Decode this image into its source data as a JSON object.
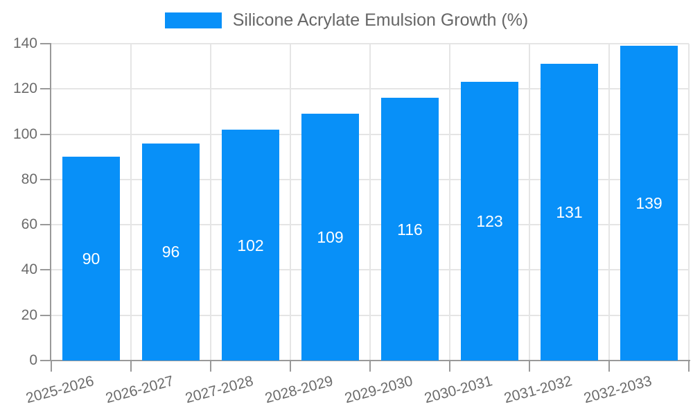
{
  "legend": {
    "label": "Silicone Acrylate Emulsion Growth (%)"
  },
  "colors": {
    "bar": "#0890F8",
    "grid": "#E5E5E5",
    "axis": "#999999",
    "tick_text": "#6b6b6b",
    "legend_text": "#666666",
    "value_text": "#ffffff",
    "background": "#ffffff"
  },
  "chart_data": {
    "type": "bar",
    "title": "",
    "categories": [
      "2025-2026",
      "2026-2027",
      "2027-2028",
      "2028-2029",
      "2029-2030",
      "2030-2031",
      "2031-2032",
      "2032-2033"
    ],
    "values": [
      90,
      96,
      102,
      109,
      116,
      123,
      131,
      139
    ],
    "series": [
      {
        "name": "Silicone Acrylate Emulsion Growth (%)",
        "values": [
          90,
          96,
          102,
          109,
          116,
          123,
          131,
          139
        ]
      }
    ],
    "xlabel": "",
    "ylabel": "",
    "ylim": [
      0,
      140
    ],
    "yticks": [
      0,
      20,
      40,
      60,
      80,
      100,
      120,
      140
    ],
    "grid": true,
    "legend_position": "top-center",
    "value_labels": "inside-center",
    "x_label_rotation_deg": 15
  }
}
